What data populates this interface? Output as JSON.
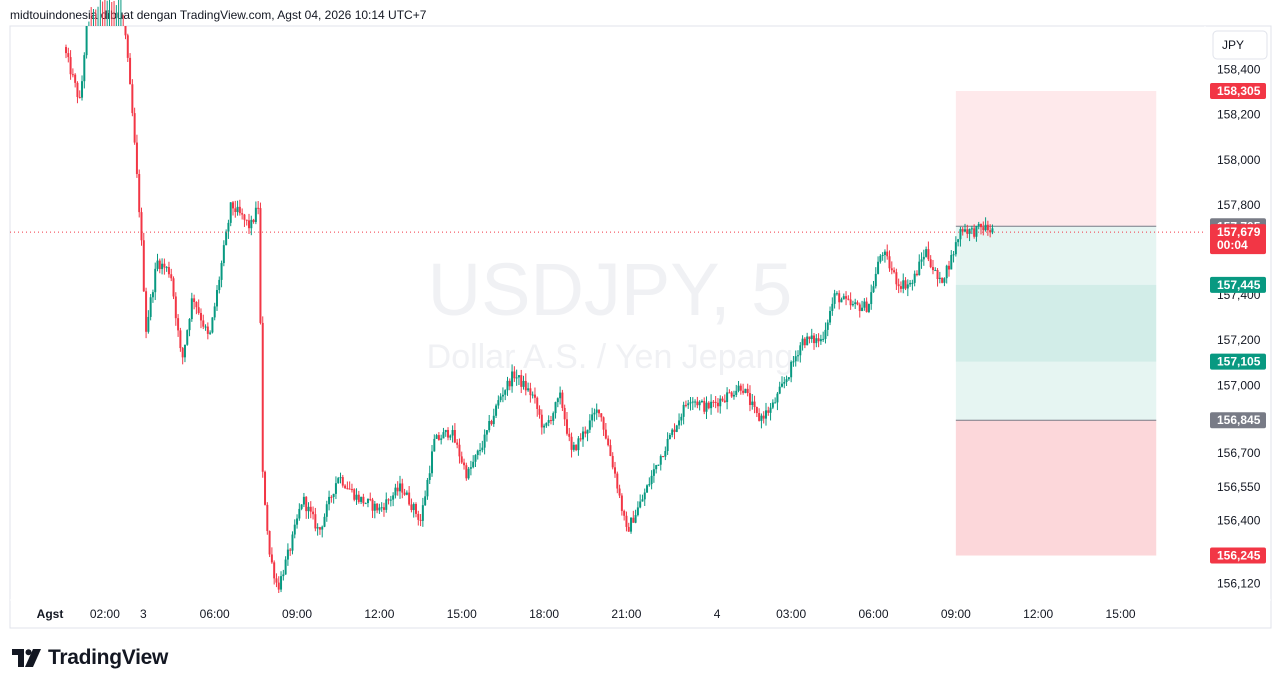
{
  "header": {
    "caption": "midtouindonesia dibuat dengan TradingView.com, Agst 04, 2026 10:14 UTC+7"
  },
  "watermark": {
    "symbol": "USDJPY, 5",
    "description": "Dollar A.S. / Yen Jepang"
  },
  "logo": {
    "text": "TradingView"
  },
  "colors": {
    "up": "#089981",
    "down": "#f23645",
    "stop_zone": "#f23645",
    "target_zone": "#089981",
    "neutral_label": "#787b86",
    "border": "#e0e3eb"
  },
  "chart_data": {
    "type": "candlestick",
    "symbol": "USDJPY",
    "interval": "5",
    "currency": "JPY",
    "ylim": [
      156.05,
      158.55
    ],
    "y_ticks": [
      {
        "value": 158.4,
        "label": "158,400"
      },
      {
        "value": 158.2,
        "label": "158,200"
      },
      {
        "value": 158.0,
        "label": "158,000"
      },
      {
        "value": 157.8,
        "label": "157,800"
      },
      {
        "value": 157.4,
        "label": "157,400"
      },
      {
        "value": 157.2,
        "label": "157,200"
      },
      {
        "value": 157.0,
        "label": "157,000"
      },
      {
        "value": 156.7,
        "label": "156,700"
      },
      {
        "value": 156.55,
        "label": "156,550"
      },
      {
        "value": 156.4,
        "label": "156,400"
      },
      {
        "value": 156.12,
        "label": "156,120"
      }
    ],
    "x_ticks": [
      {
        "hour": 0,
        "label": "Agst"
      },
      {
        "hour": 2,
        "label": "02:00"
      },
      {
        "hour": 3.4,
        "label": "3"
      },
      {
        "hour": 6,
        "label": "06:00"
      },
      {
        "hour": 9,
        "label": "09:00"
      },
      {
        "hour": 12,
        "label": "12:00"
      },
      {
        "hour": 15,
        "label": "15:00"
      },
      {
        "hour": 18,
        "label": "18:00"
      },
      {
        "hour": 21,
        "label": "21:00"
      },
      {
        "hour": 24.3,
        "label": "4"
      },
      {
        "hour": 27,
        "label": "03:00"
      },
      {
        "hour": 30,
        "label": "06:00"
      },
      {
        "hour": 33,
        "label": "09:00"
      },
      {
        "hour": 36,
        "label": "12:00"
      },
      {
        "hour": 39,
        "label": "15:00"
      }
    ],
    "price_path": [
      {
        "h": 0.5,
        "p": 158.5
      },
      {
        "h": 1.1,
        "p": 158.25
      },
      {
        "h": 1.4,
        "p": 158.7
      },
      {
        "h": 2.6,
        "p": 158.75
      },
      {
        "h": 3.0,
        "p": 158.2
      },
      {
        "h": 3.3,
        "p": 157.7
      },
      {
        "h": 3.5,
        "p": 157.25
      },
      {
        "h": 3.9,
        "p": 157.55
      },
      {
        "h": 4.4,
        "p": 157.5
      },
      {
        "h": 4.8,
        "p": 157.1
      },
      {
        "h": 5.2,
        "p": 157.4
      },
      {
        "h": 5.8,
        "p": 157.2
      },
      {
        "h": 6.2,
        "p": 157.5
      },
      {
        "h": 6.6,
        "p": 157.8
      },
      {
        "h": 7.3,
        "p": 157.7
      },
      {
        "h": 7.6,
        "p": 157.8
      },
      {
        "h": 7.75,
        "p": 156.6
      },
      {
        "h": 8.0,
        "p": 156.25
      },
      {
        "h": 8.3,
        "p": 156.1
      },
      {
        "h": 8.8,
        "p": 156.3
      },
      {
        "h": 9.2,
        "p": 156.5
      },
      {
        "h": 9.8,
        "p": 156.35
      },
      {
        "h": 10.5,
        "p": 156.6
      },
      {
        "h": 11.2,
        "p": 156.5
      },
      {
        "h": 12.0,
        "p": 156.45
      },
      {
        "h": 12.8,
        "p": 156.55
      },
      {
        "h": 13.5,
        "p": 156.4
      },
      {
        "h": 14.0,
        "p": 156.75
      },
      {
        "h": 14.6,
        "p": 156.8
      },
      {
        "h": 15.2,
        "p": 156.6
      },
      {
        "h": 15.8,
        "p": 156.75
      },
      {
        "h": 16.4,
        "p": 156.95
      },
      {
        "h": 16.9,
        "p": 157.05
      },
      {
        "h": 17.6,
        "p": 156.95
      },
      {
        "h": 18.0,
        "p": 156.8
      },
      {
        "h": 18.6,
        "p": 156.95
      },
      {
        "h": 19.0,
        "p": 156.7
      },
      {
        "h": 19.5,
        "p": 156.8
      },
      {
        "h": 20.0,
        "p": 156.9
      },
      {
        "h": 20.6,
        "p": 156.6
      },
      {
        "h": 21.0,
        "p": 156.35
      },
      {
        "h": 21.6,
        "p": 156.5
      },
      {
        "h": 22.1,
        "p": 156.65
      },
      {
        "h": 22.7,
        "p": 156.8
      },
      {
        "h": 23.3,
        "p": 156.95
      },
      {
        "h": 23.9,
        "p": 156.9
      },
      {
        "h": 24.6,
        "p": 156.95
      },
      {
        "h": 25.2,
        "p": 157.0
      },
      {
        "h": 25.8,
        "p": 156.85
      },
      {
        "h": 26.3,
        "p": 156.9
      },
      {
        "h": 26.9,
        "p": 157.05
      },
      {
        "h": 27.4,
        "p": 157.2
      },
      {
        "h": 28.1,
        "p": 157.2
      },
      {
        "h": 28.6,
        "p": 157.4
      },
      {
        "h": 29.2,
        "p": 157.35
      },
      {
        "h": 29.8,
        "p": 157.35
      },
      {
        "h": 30.3,
        "p": 157.6
      },
      {
        "h": 30.9,
        "p": 157.45
      },
      {
        "h": 31.4,
        "p": 157.45
      },
      {
        "h": 31.9,
        "p": 157.6
      },
      {
        "h": 32.4,
        "p": 157.45
      },
      {
        "h": 32.8,
        "p": 157.55
      },
      {
        "h": 33.2,
        "p": 157.7
      },
      {
        "h": 33.6,
        "p": 157.68
      },
      {
        "h": 34.0,
        "p": 157.7
      },
      {
        "h": 34.4,
        "p": 157.68
      }
    ],
    "current_price": {
      "value": 157.679,
      "label": "157,679",
      "countdown": "00:04"
    },
    "position_tool": {
      "hour_start": 33.0,
      "hour_end": 40.3,
      "entry": {
        "value": 157.705,
        "label": "157,705"
      },
      "take_profit_1": {
        "value": 157.445,
        "label": "157,445"
      },
      "take_profit_2": {
        "value": 157.105,
        "label": "157,105"
      },
      "take_profit_3": {
        "value": 156.845,
        "label": "156,845"
      },
      "stop_upper": {
        "value": 158.305,
        "label": "158,305"
      },
      "stop_lower": {
        "value": 156.245,
        "label": "156,245"
      }
    }
  }
}
